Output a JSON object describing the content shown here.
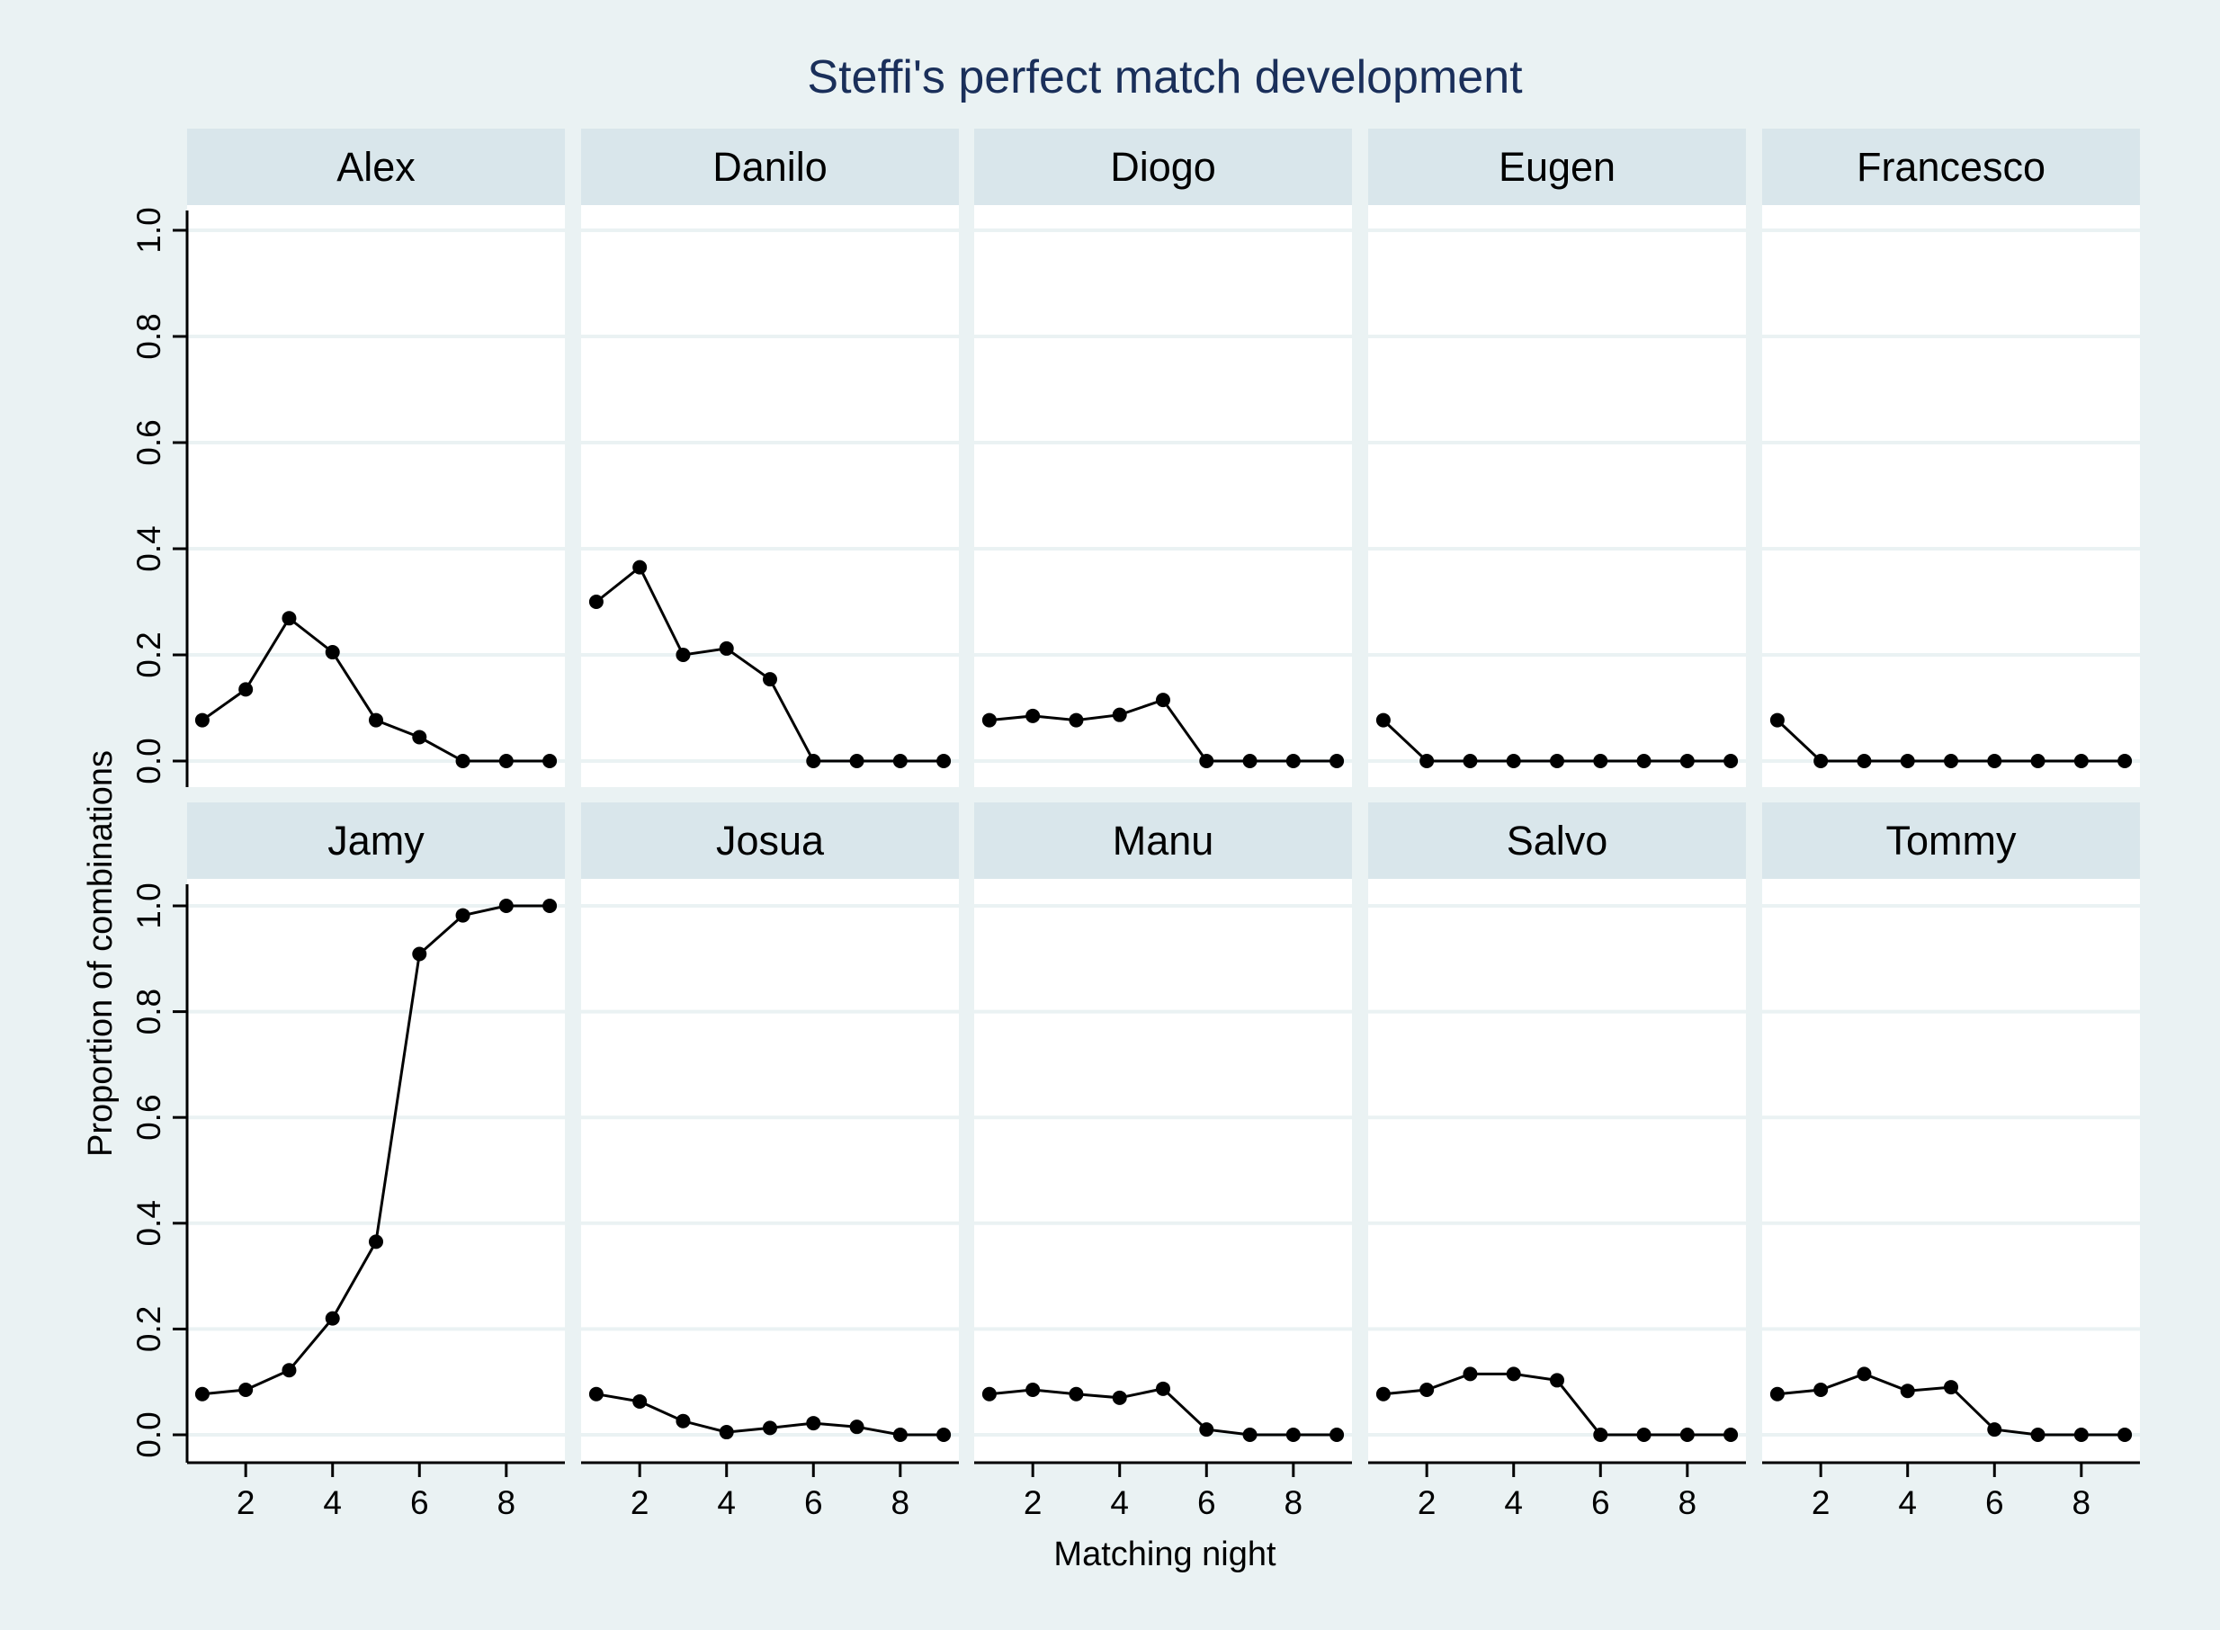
{
  "chart_data": {
    "type": "line",
    "title": "Steffi's perfect match development",
    "xlabel": "Matching night",
    "ylabel": "Proportion of combinations",
    "x": [
      1,
      2,
      3,
      4,
      5,
      6,
      7,
      8,
      9
    ],
    "x_ticks": [
      "2",
      "4",
      "6",
      "8"
    ],
    "y_ticks": [
      "0.0",
      "0.2",
      "0.4",
      "0.6",
      "0.8",
      "1.0"
    ],
    "ylim": [
      0,
      1
    ],
    "grid": true,
    "layout": "2 rows x 5 panels",
    "colors": {
      "background": "#eaf2f3",
      "strip": "#d9e6eb",
      "line": "#000000",
      "title": "#1a2f5a",
      "grid": "#eaf2f3"
    },
    "panels": [
      {
        "name": "Alex",
        "values": [
          0.077,
          0.135,
          0.269,
          0.205,
          0.077,
          0.045,
          0,
          0,
          0
        ]
      },
      {
        "name": "Danilo",
        "values": [
          0.3,
          0.365,
          0.2,
          0.212,
          0.154,
          0,
          0,
          0,
          0
        ]
      },
      {
        "name": "Diogo",
        "values": [
          0.077,
          0.085,
          0.077,
          0.087,
          0.115,
          0,
          0,
          0,
          0
        ]
      },
      {
        "name": "Eugen",
        "values": [
          0.077,
          0,
          0,
          0,
          0,
          0,
          0,
          0,
          0
        ]
      },
      {
        "name": "Francesco",
        "values": [
          0.077,
          0,
          0,
          0,
          0,
          0,
          0,
          0,
          0
        ]
      },
      {
        "name": "Jamy",
        "values": [
          0.077,
          0.085,
          0.122,
          0.22,
          0.365,
          0.909,
          0.982,
          1.0,
          1.0
        ]
      },
      {
        "name": "Josua",
        "values": [
          0.077,
          0.063,
          0.026,
          0.005,
          0.013,
          0.022,
          0.015,
          0,
          0
        ]
      },
      {
        "name": "Manu",
        "values": [
          0.077,
          0.085,
          0.077,
          0.07,
          0.087,
          0.01,
          0,
          0,
          0
        ]
      },
      {
        "name": "Salvo",
        "values": [
          0.077,
          0.085,
          0.115,
          0.115,
          0.103,
          0,
          0,
          0,
          0
        ]
      },
      {
        "name": "Tommy",
        "values": [
          0.077,
          0.085,
          0.115,
          0.083,
          0.09,
          0.01,
          0,
          0,
          0
        ]
      }
    ]
  }
}
